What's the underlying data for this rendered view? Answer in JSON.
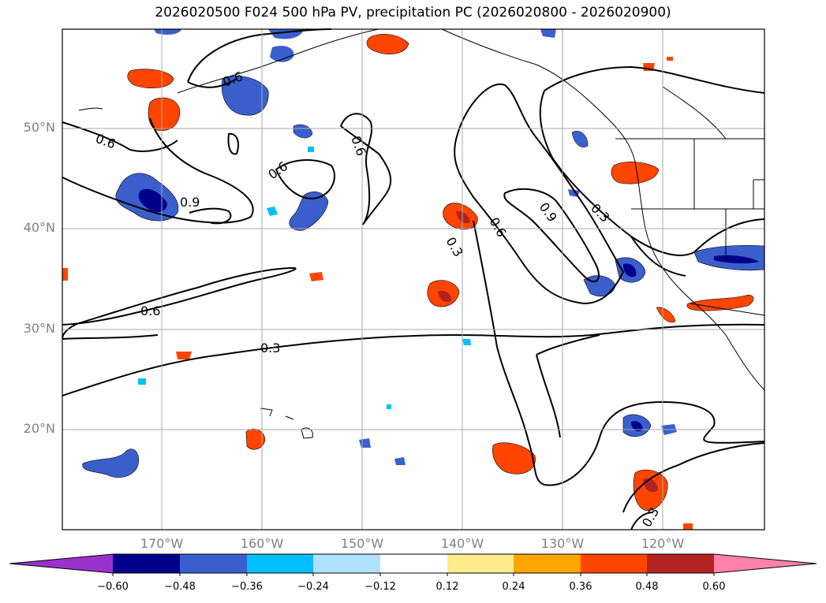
{
  "title": "2026020500 F024 500 hPa PV, precipitation PC (2026020800 - 2026020900)",
  "latitude_labels": [
    "50°N",
    "40°N",
    "30°N",
    "20°N"
  ],
  "longitude_labels": [
    "170°W",
    "160°W",
    "150°W",
    "140°W",
    "130°W",
    "120°W"
  ],
  "contour_labels": [
    "0.6",
    "0.6",
    "0.9",
    "0.6",
    "0.6",
    "0.6",
    "0.3",
    "0.6",
    "0.9",
    "0.3",
    "0.3",
    "0.3"
  ],
  "colorbar": {
    "ticks": [
      "−0.60",
      "−0.48",
      "−0.36",
      "−0.24",
      "−0.12",
      "0.12",
      "0.24",
      "0.36",
      "0.48",
      "0.60"
    ],
    "colors": [
      "#9932cc",
      "#00008b",
      "#3a5fcd",
      "#00bfff",
      "#b0e2ff",
      "#ffffff",
      "#ffec8b",
      "#ffa500",
      "#ff4500",
      "#b22222",
      "#ff82ab"
    ]
  },
  "colors": {
    "neg_strong": "#00008b",
    "neg_mid": "#3a5fcd",
    "neg_light": "#00bfff",
    "pos_light": "#ffec8b",
    "pos_mid": "#ff4500",
    "pos_strong": "#b22222"
  }
}
